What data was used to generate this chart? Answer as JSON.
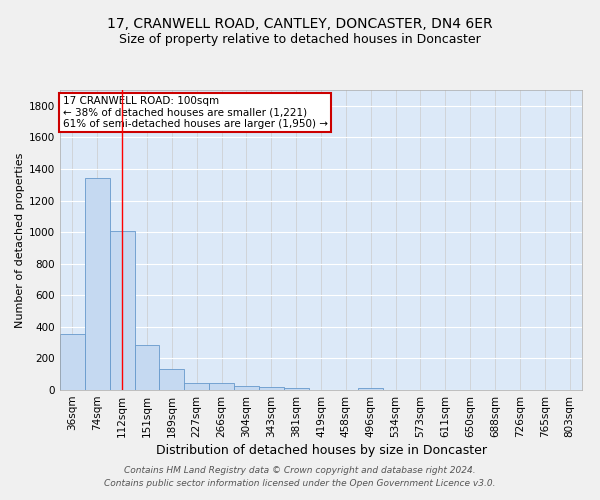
{
  "title1": "17, CRANWELL ROAD, CANTLEY, DONCASTER, DN4 6ER",
  "title2": "Size of property relative to detached houses in Doncaster",
  "xlabel": "Distribution of detached houses by size in Doncaster",
  "ylabel": "Number of detached properties",
  "categories": [
    "36sqm",
    "74sqm",
    "112sqm",
    "151sqm",
    "189sqm",
    "227sqm",
    "266sqm",
    "304sqm",
    "343sqm",
    "381sqm",
    "419sqm",
    "458sqm",
    "496sqm",
    "534sqm",
    "573sqm",
    "611sqm",
    "650sqm",
    "688sqm",
    "726sqm",
    "765sqm",
    "803sqm"
  ],
  "values": [
    355,
    1340,
    1010,
    285,
    130,
    42,
    42,
    28,
    18,
    15,
    0,
    0,
    15,
    0,
    0,
    0,
    0,
    0,
    0,
    0,
    0
  ],
  "bar_color": "#c5d9f1",
  "bar_edge_color": "#6699cc",
  "red_line_x": 2.0,
  "annotation_text": "17 CRANWELL ROAD: 100sqm\n← 38% of detached houses are smaller (1,221)\n61% of semi-detached houses are larger (1,950) →",
  "annotation_box_color": "#ffffff",
  "annotation_box_edge": "#cc0000",
  "ylim": [
    0,
    1900
  ],
  "yticks": [
    0,
    200,
    400,
    600,
    800,
    1000,
    1200,
    1400,
    1600,
    1800
  ],
  "bg_color": "#dce9f8",
  "grid_color": "#ffffff",
  "footer": "Contains HM Land Registry data © Crown copyright and database right 2024.\nContains public sector information licensed under the Open Government Licence v3.0.",
  "title1_fontsize": 10,
  "title2_fontsize": 9,
  "xlabel_fontsize": 9,
  "ylabel_fontsize": 8,
  "tick_fontsize": 7.5,
  "annotation_fontsize": 7.5,
  "footer_fontsize": 6.5
}
